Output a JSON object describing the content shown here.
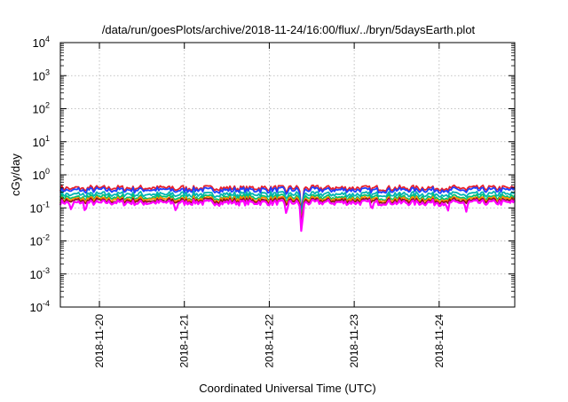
{
  "chart_data": {
    "type": "line",
    "title": "/data/run/goesPlots/archive/2018-11-24/16:00/flux/../bryn/5daysEarth.plot",
    "xlabel": "Coordinated Universal Time (UTC)",
    "ylabel": "cGy/day",
    "yscale": "log",
    "ylim": [
      0.0001,
      10000
    ],
    "xlim": [
      0,
      5.35
    ],
    "grid": true,
    "y_ticks": [
      {
        "base": "10",
        "exp": "-4"
      },
      {
        "base": "10",
        "exp": "-3"
      },
      {
        "base": "10",
        "exp": "-2"
      },
      {
        "base": "10",
        "exp": "-1"
      },
      {
        "base": "10",
        "exp": "0"
      },
      {
        "base": "10",
        "exp": "1"
      },
      {
        "base": "10",
        "exp": "2"
      },
      {
        "base": "10",
        "exp": "3"
      },
      {
        "base": "10",
        "exp": "4"
      }
    ],
    "x_ticks": [
      {
        "x": 0.46,
        "label": "2018-11-20"
      },
      {
        "x": 1.46,
        "label": "2018-11-21"
      },
      {
        "x": 2.46,
        "label": "2018-11-22"
      },
      {
        "x": 3.46,
        "label": "2018-11-23"
      },
      {
        "x": 4.46,
        "label": "2018-11-24"
      }
    ],
    "series": [
      {
        "color": "#e8202a",
        "level": 0.4,
        "dip": 0.2
      },
      {
        "color": "#1f3fff",
        "level": 0.35,
        "dip": 0.18
      },
      {
        "color": "#00b3b3",
        "level": 0.26,
        "dip": 0.15
      },
      {
        "color": "#00c36e",
        "level": 0.21,
        "dip": 0.13
      },
      {
        "color": "#ff8c00",
        "level": 0.185,
        "dip": 0.12
      },
      {
        "color": "#8b1a1a",
        "level": 0.165,
        "dip": 0.11
      },
      {
        "color": "#ff00ff",
        "level": 0.145,
        "dip": 0.1
      }
    ],
    "dips": [
      {
        "x": 0.13,
        "value": 0.08
      },
      {
        "x": 0.29,
        "value": 0.075
      },
      {
        "x": 1.36,
        "value": 0.075
      },
      {
        "x": 2.66,
        "value": 0.065
      },
      {
        "x": 2.84,
        "value": 0.013
      },
      {
        "x": 3.67,
        "value": 0.09
      },
      {
        "x": 4.56,
        "value": 0.07
      },
      {
        "x": 4.78,
        "value": 0.075
      }
    ]
  }
}
